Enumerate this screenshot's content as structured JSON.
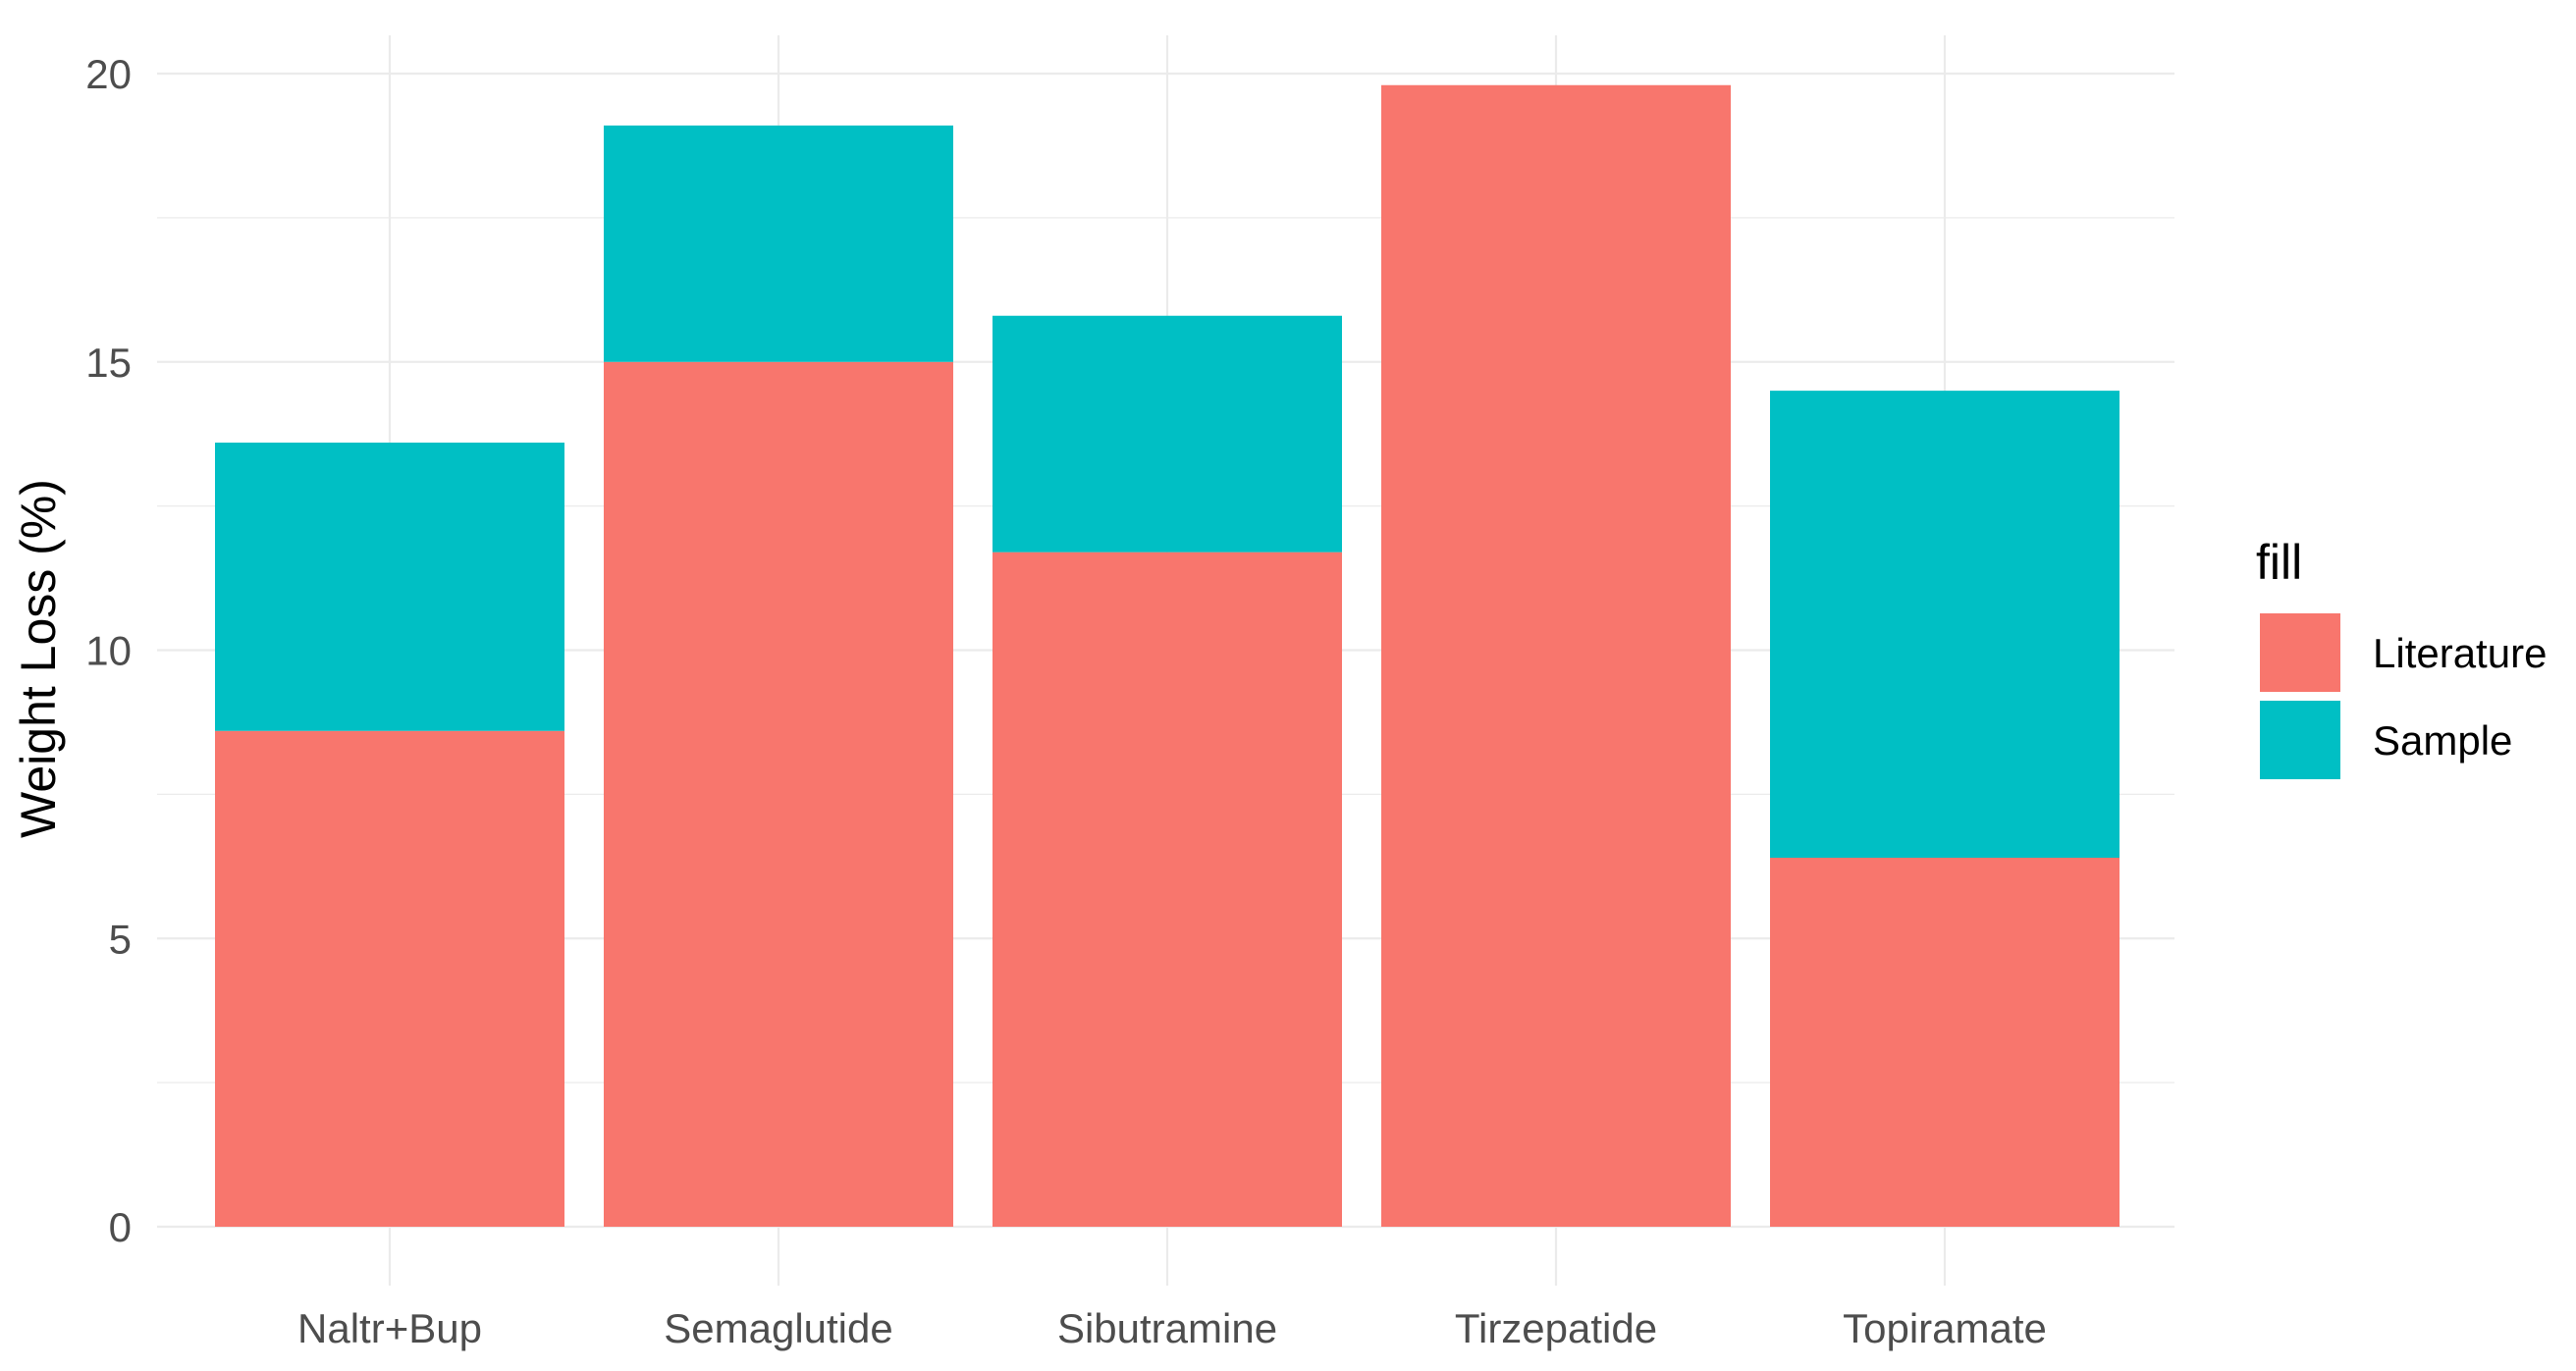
{
  "chart_data": {
    "type": "bar",
    "stacked": true,
    "title": "",
    "xlabel": "",
    "ylabel": "Weight Loss (%)",
    "categories": [
      "Naltr+Bup",
      "Semaglutide",
      "Sibutramine",
      "Tirzepatide",
      "Topiramate"
    ],
    "series": [
      {
        "name": "Literature",
        "color": "#F8766D",
        "values": [
          8.6,
          15.0,
          11.7,
          19.8,
          6.4
        ]
      },
      {
        "name": "Sample",
        "color": "#00BFC4",
        "values": [
          5.0,
          4.1,
          4.1,
          0,
          8.1
        ]
      }
    ],
    "ylim": [
      0,
      20
    ],
    "yticks": [
      0,
      5,
      10,
      15,
      20
    ],
    "ytick_labels": [
      "0",
      "5",
      "10",
      "15",
      "20"
    ],
    "grid": true,
    "legend": {
      "title": "fill",
      "placement": "right",
      "entries": [
        "Literature",
        "Sample"
      ]
    }
  }
}
